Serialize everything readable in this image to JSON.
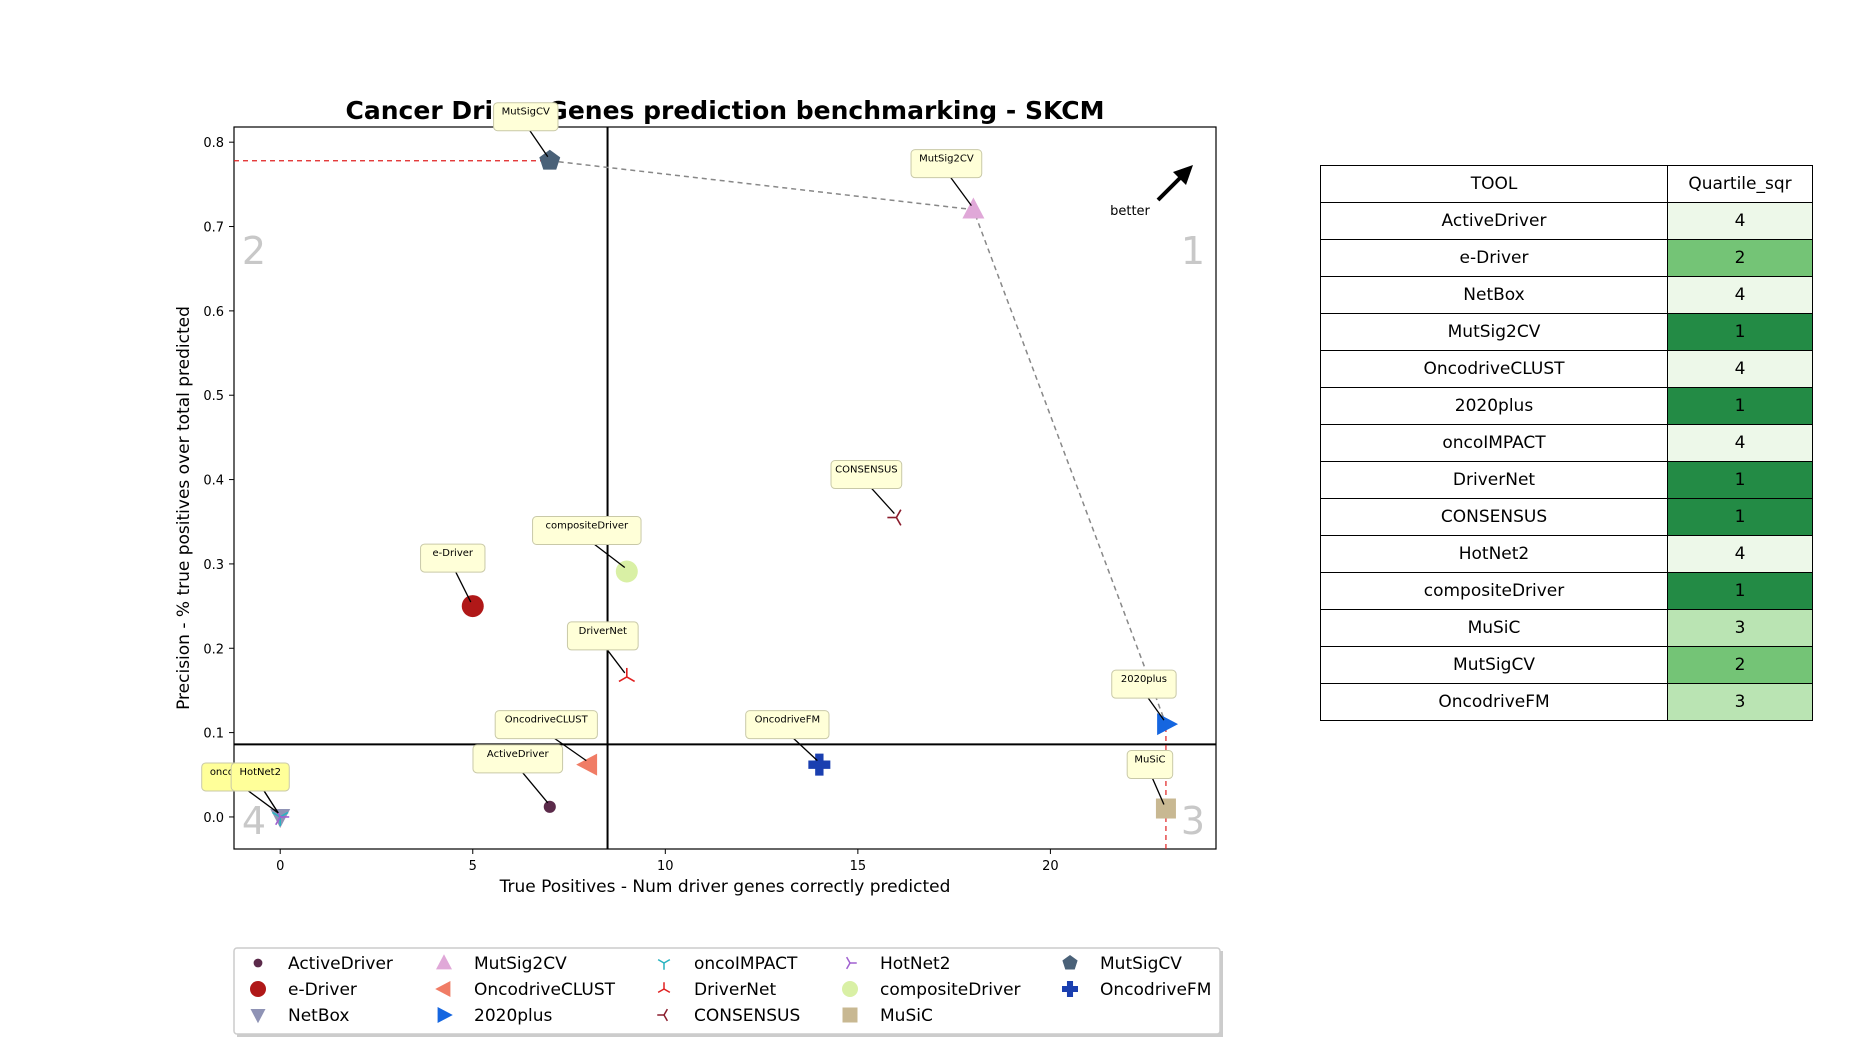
{
  "chart_data": {
    "type": "scatter",
    "title": "Cancer Driver Genes prediction benchmarking - SKCM",
    "xlabel": "True Positives - Num driver genes correctly predicted",
    "ylabel": "Precision - % true positives over total predicted",
    "xlim": [
      -1.2,
      24.3
    ],
    "ylim": [
      -0.038,
      0.818
    ],
    "xticks": [
      0,
      5,
      10,
      15,
      20
    ],
    "yticks": [
      0.0,
      0.1,
      0.2,
      0.3,
      0.4,
      0.5,
      0.6,
      0.7,
      0.8
    ],
    "ytick_labels": [
      "0.0",
      "0.1",
      "0.2",
      "0.3",
      "0.4",
      "0.5",
      "0.6",
      "0.7",
      "0.8"
    ],
    "quadrant_lines": {
      "x": 8.5,
      "y": 0.086
    },
    "quadrant_labels": [
      "1",
      "2",
      "3",
      "4"
    ],
    "better_label": "better",
    "grid": false,
    "legend_position": "bottom",
    "series": [
      {
        "name": "ActiveDriver",
        "x": 7,
        "y": 0.012,
        "marker": "circle-small",
        "color": "#5b2a4a"
      },
      {
        "name": "e-Driver",
        "x": 5,
        "y": 0.25,
        "marker": "circle",
        "color": "#b01818"
      },
      {
        "name": "NetBox",
        "x": 0,
        "y": 0.0,
        "marker": "triangle-down",
        "color": "#8f93b5"
      },
      {
        "name": "MutSig2CV",
        "x": 18,
        "y": 0.72,
        "marker": "triangle-up",
        "color": "#e0a8d8"
      },
      {
        "name": "OncodriveCLUST",
        "x": 8,
        "y": 0.062,
        "marker": "triangle-left",
        "color": "#f07c65"
      },
      {
        "name": "2020plus",
        "x": 23,
        "y": 0.11,
        "marker": "triangle-right",
        "color": "#1566e0"
      },
      {
        "name": "oncoIMPACT",
        "x": 0,
        "y": 0.0,
        "marker": "tri-down",
        "color": "#27b3c0"
      },
      {
        "name": "DriverNet",
        "x": 9,
        "y": 0.166,
        "marker": "tri-up",
        "color": "#e02020"
      },
      {
        "name": "CONSENSUS",
        "x": 16,
        "y": 0.355,
        "marker": "tri-left",
        "color": "#8a1c2c"
      },
      {
        "name": "HotNet2",
        "x": 0,
        "y": 0.0,
        "marker": "tri-right",
        "color": "#a060d0"
      },
      {
        "name": "compositeDriver",
        "x": 9,
        "y": 0.291,
        "marker": "circle",
        "color": "#d9f0a5"
      },
      {
        "name": "MuSiC",
        "x": 23,
        "y": 0.01,
        "marker": "square",
        "color": "#c8b892"
      },
      {
        "name": "MutSigCV",
        "x": 7,
        "y": 0.778,
        "marker": "pentagon",
        "color": "#4a6178"
      },
      {
        "name": "OncodriveFM",
        "x": 14,
        "y": 0.062,
        "marker": "plus",
        "color": "#1a3fb0"
      }
    ],
    "pareto_frontier": [
      "MutSigCV",
      "MutSig2CV",
      "2020plus"
    ]
  },
  "table": {
    "headers": [
      "TOOL",
      "Quartile_sqr"
    ],
    "rows": [
      {
        "tool": "ActiveDriver",
        "quartile": "4",
        "color": "#edf8e9"
      },
      {
        "tool": "e-Driver",
        "quartile": "2",
        "color": "#74c476"
      },
      {
        "tool": "NetBox",
        "quartile": "4",
        "color": "#edf8e9"
      },
      {
        "tool": "MutSig2CV",
        "quartile": "1",
        "color": "#238b45"
      },
      {
        "tool": "OncodriveCLUST",
        "quartile": "4",
        "color": "#edf8e9"
      },
      {
        "tool": "2020plus",
        "quartile": "1",
        "color": "#238b45"
      },
      {
        "tool": "oncoIMPACT",
        "quartile": "4",
        "color": "#edf8e9"
      },
      {
        "tool": "DriverNet",
        "quartile": "1",
        "color": "#238b45"
      },
      {
        "tool": "CONSENSUS",
        "quartile": "1",
        "color": "#238b45"
      },
      {
        "tool": "HotNet2",
        "quartile": "4",
        "color": "#edf8e9"
      },
      {
        "tool": "compositeDriver",
        "quartile": "1",
        "color": "#238b45"
      },
      {
        "tool": "MuSiC",
        "quartile": "3",
        "color": "#bae4b3"
      },
      {
        "tool": "MutSigCV",
        "quartile": "2",
        "color": "#74c476"
      },
      {
        "tool": "OncodriveFM",
        "quartile": "3",
        "color": "#bae4b3"
      }
    ]
  }
}
